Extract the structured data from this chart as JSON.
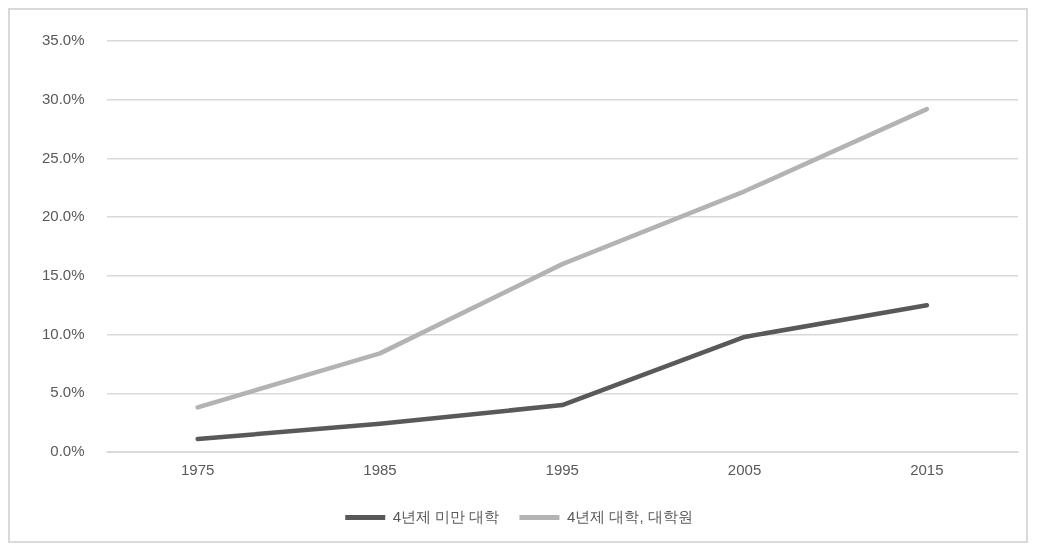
{
  "chart_data": {
    "type": "line",
    "categories": [
      "1975",
      "1985",
      "1995",
      "2005",
      "2015"
    ],
    "series": [
      {
        "name": "4년제 미만 대학",
        "color": "#595959",
        "values": [
          1.1,
          2.4,
          4.0,
          9.8,
          12.5
        ]
      },
      {
        "name": "4년제 대학, 대학원",
        "color": "#b3b3b3",
        "values": [
          3.8,
          8.4,
          16.0,
          22.2,
          29.2
        ]
      }
    ],
    "ylim": [
      0,
      35
    ],
    "yticks": [
      {
        "value": 0,
        "label": "0.0%"
      },
      {
        "value": 5,
        "label": "5.0%"
      },
      {
        "value": 10,
        "label": "10.0%"
      },
      {
        "value": 15,
        "label": "15.0%"
      },
      {
        "value": 20,
        "label": "20.0%"
      },
      {
        "value": 25,
        "label": "25.0%"
      },
      {
        "value": 30,
        "label": "30.0%"
      },
      {
        "value": 35,
        "label": "35.0%"
      }
    ],
    "grid": "y",
    "legend": "bottom",
    "marker": "none",
    "line_style": "solid"
  }
}
